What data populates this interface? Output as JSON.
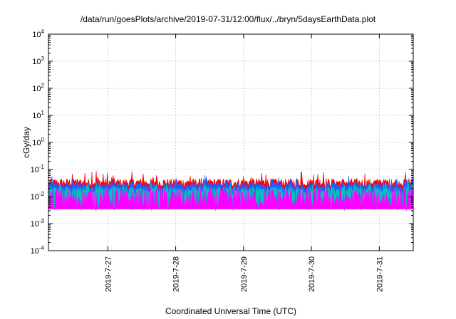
{
  "chart_data": {
    "type": "area",
    "title": "/data/run/goesPlots/archive/2019-07-31/12:00/flux/../bryn/5daysEarthData.plot",
    "xlabel": "Coordinated Universal Time (UTC)",
    "ylabel": "cGy/day",
    "yscale": "log",
    "ylim": [
      0.0001,
      10000
    ],
    "xlim": [
      "2019-07-26T03:00",
      "2019-07-31T12:00"
    ],
    "x_tick_labels": [
      "2019-7-27",
      "2019-7-28",
      "2019-7-29",
      "2019-7-30",
      "2019-7-31"
    ],
    "x_tick_dates": [
      "2019-07-27",
      "2019-07-28",
      "2019-07-29",
      "2019-07-30",
      "2019-07-31"
    ],
    "y_ticks": [
      {
        "base": "10",
        "exp": "-4",
        "value": 0.0001
      },
      {
        "base": "10",
        "exp": "-3",
        "value": 0.001
      },
      {
        "base": "10",
        "exp": "-2",
        "value": 0.01
      },
      {
        "base": "10",
        "exp": "-1",
        "value": 0.1
      },
      {
        "base": "10",
        "exp": "0",
        "value": 1
      },
      {
        "base": "10",
        "exp": "1",
        "value": 10
      },
      {
        "base": "10",
        "exp": "2",
        "value": 100
      },
      {
        "base": "10",
        "exp": "3",
        "value": 1000
      },
      {
        "base": "10",
        "exp": "4",
        "value": 10000
      }
    ],
    "grid": true,
    "legend": "none",
    "series": [
      {
        "color": "#ff0000",
        "typical_value": 0.04,
        "peak_value": 0.09
      },
      {
        "color": "#1f5fff",
        "typical_value": 0.03,
        "peak_value": 0.06
      },
      {
        "color": "#00c0c0",
        "typical_value": 0.02,
        "peak_value": 0.04
      },
      {
        "color": "#ff00ff",
        "typical_value": 0.008,
        "min_value": 0.003
      }
    ]
  }
}
